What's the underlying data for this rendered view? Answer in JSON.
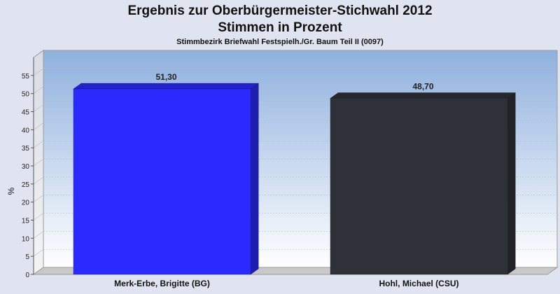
{
  "chart_data": {
    "type": "bar",
    "title": "Ergebnis zur Oberbürgermeister-Stichwahl  2012",
    "title2": "Stimmen in Prozent",
    "subtitle": "Stimmbezirk Briefwahl Festspielh./Gr. Baum Teil II (0097)",
    "ylabel": "%",
    "ylim": [
      0,
      60
    ],
    "yticks": [
      0,
      5,
      10,
      15,
      20,
      25,
      30,
      35,
      40,
      45,
      50,
      55
    ],
    "categories": [
      "Merk-Erbe, Brigitte (BG)",
      "Hohl, Michael (CSU)"
    ],
    "values": [
      51.3,
      48.7
    ],
    "value_labels": [
      "51,30",
      "48,70"
    ],
    "colors": [
      "#2a2aff",
      "#2e3138"
    ],
    "background": "#dfe4f0",
    "grid": true
  }
}
